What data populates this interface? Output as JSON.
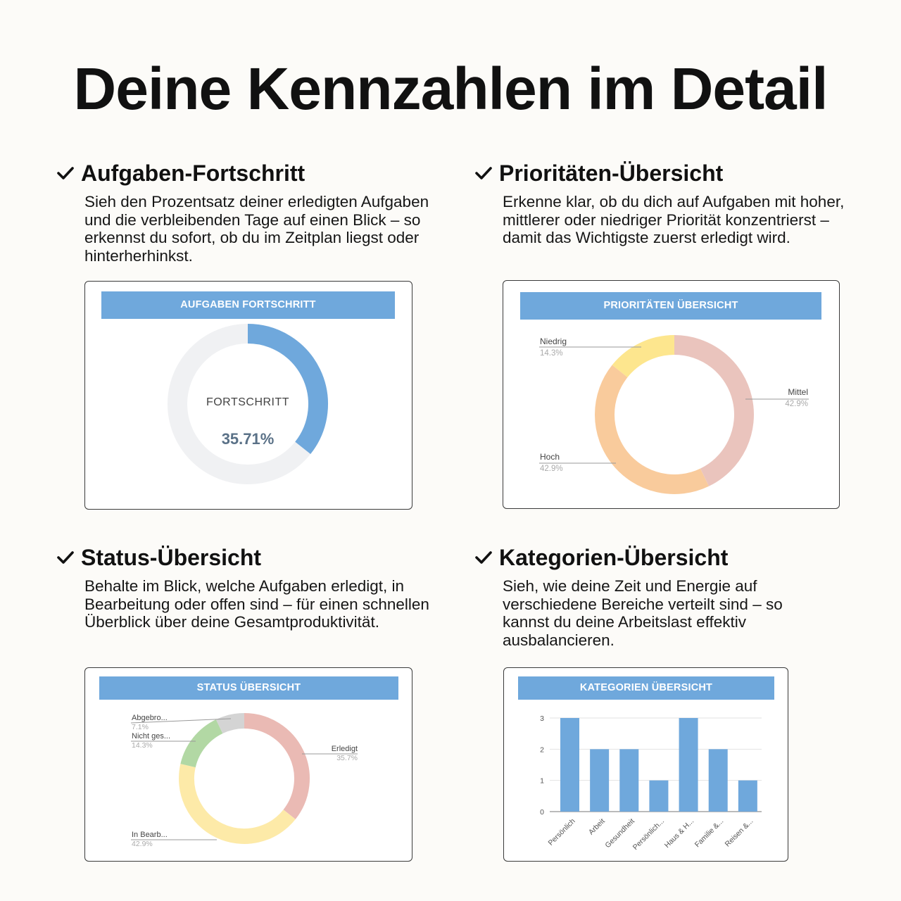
{
  "page": {
    "title": "Deine Kennzahlen im Detail"
  },
  "sections": {
    "progress": {
      "title": "Aufgaben-Fortschritt",
      "description": "Sieh den Prozentsatz deiner erledigten Aufgaben und die verbleibenden Tage auf einen Blick – so erkennst du sofort, ob du im Zeitplan liegst oder hinterherhinkst."
    },
    "priority": {
      "title": "Prioritäten-Übersicht",
      "description": "Erkenne klar, ob du dich auf Aufgaben mit hoher, mittlerer oder niedriger Priorität konzentrierst – damit das Wichtigste zuerst erledigt wird."
    },
    "status": {
      "title": "Status-Übersicht",
      "description": "Behalte im Blick, welche Aufgaben erledigt, in Bearbeitung oder offen sind – für einen schnellen Überblick über deine Gesamtproduktivität."
    },
    "category": {
      "title": "Kategorien-Übersicht",
      "description": "Sieh, wie deine Zeit und Energie auf verschiedene Bereiche verteilt sind – so kannst du deine Arbeitslast effektiv ausbalancieren."
    }
  },
  "colors": {
    "header": "#6fa8dc",
    "blue": "#6fa8dc",
    "track": "#f0f1f3",
    "mittel": "#eac4bd",
    "hoch": "#f9cb9c",
    "niedrig": "#fde68e",
    "erledigt": "#eabab4",
    "in_bearb": "#fdeaa8",
    "nicht_ges": "#b2d8a4",
    "abgebro": "#d4d4d4"
  },
  "chart_data": [
    {
      "type": "pie",
      "variant": "gauge",
      "title": "AUFGABEN FORTSCHRITT",
      "center_label": "FORTSCHRITT",
      "value_label": "35.71%",
      "value": 35.71,
      "max": 100
    },
    {
      "type": "pie",
      "title": "PRIORITÄTEN ÜBERSICHT",
      "slices": [
        {
          "label": "Mittel",
          "pct_label": "42.9%",
          "value": 42.9,
          "color_key": "mittel"
        },
        {
          "label": "Hoch",
          "pct_label": "42.9%",
          "value": 42.9,
          "color_key": "hoch"
        },
        {
          "label": "Niedrig",
          "pct_label": "14.3%",
          "value": 14.3,
          "color_key": "niedrig"
        }
      ]
    },
    {
      "type": "pie",
      "title": "STATUS ÜBERSICHT",
      "slices": [
        {
          "label": "Erledigt",
          "pct_label": "35.7%",
          "value": 35.7,
          "color_key": "erledigt"
        },
        {
          "label": "In Bearb...",
          "pct_label": "42.9%",
          "value": 42.9,
          "color_key": "in_bearb"
        },
        {
          "label": "Nicht ges...",
          "pct_label": "14.3%",
          "value": 14.3,
          "color_key": "nicht_ges"
        },
        {
          "label": "Abgebro...",
          "pct_label": "7.1%",
          "value": 7.1,
          "color_key": "abgebro"
        }
      ]
    },
    {
      "type": "bar",
      "title": "KATEGORIEN ÜBERSICHT",
      "categories": [
        "Persönlich",
        "Arbeit",
        "Gesundheit",
        "Persönlich...",
        "Haus & H...",
        "Familie &...",
        "Reisen &..."
      ],
      "values": [
        3,
        2,
        2,
        1,
        3,
        2,
        1
      ],
      "ylim": [
        0,
        3
      ],
      "yticks": [
        "0",
        "1",
        "2",
        "3"
      ]
    }
  ]
}
